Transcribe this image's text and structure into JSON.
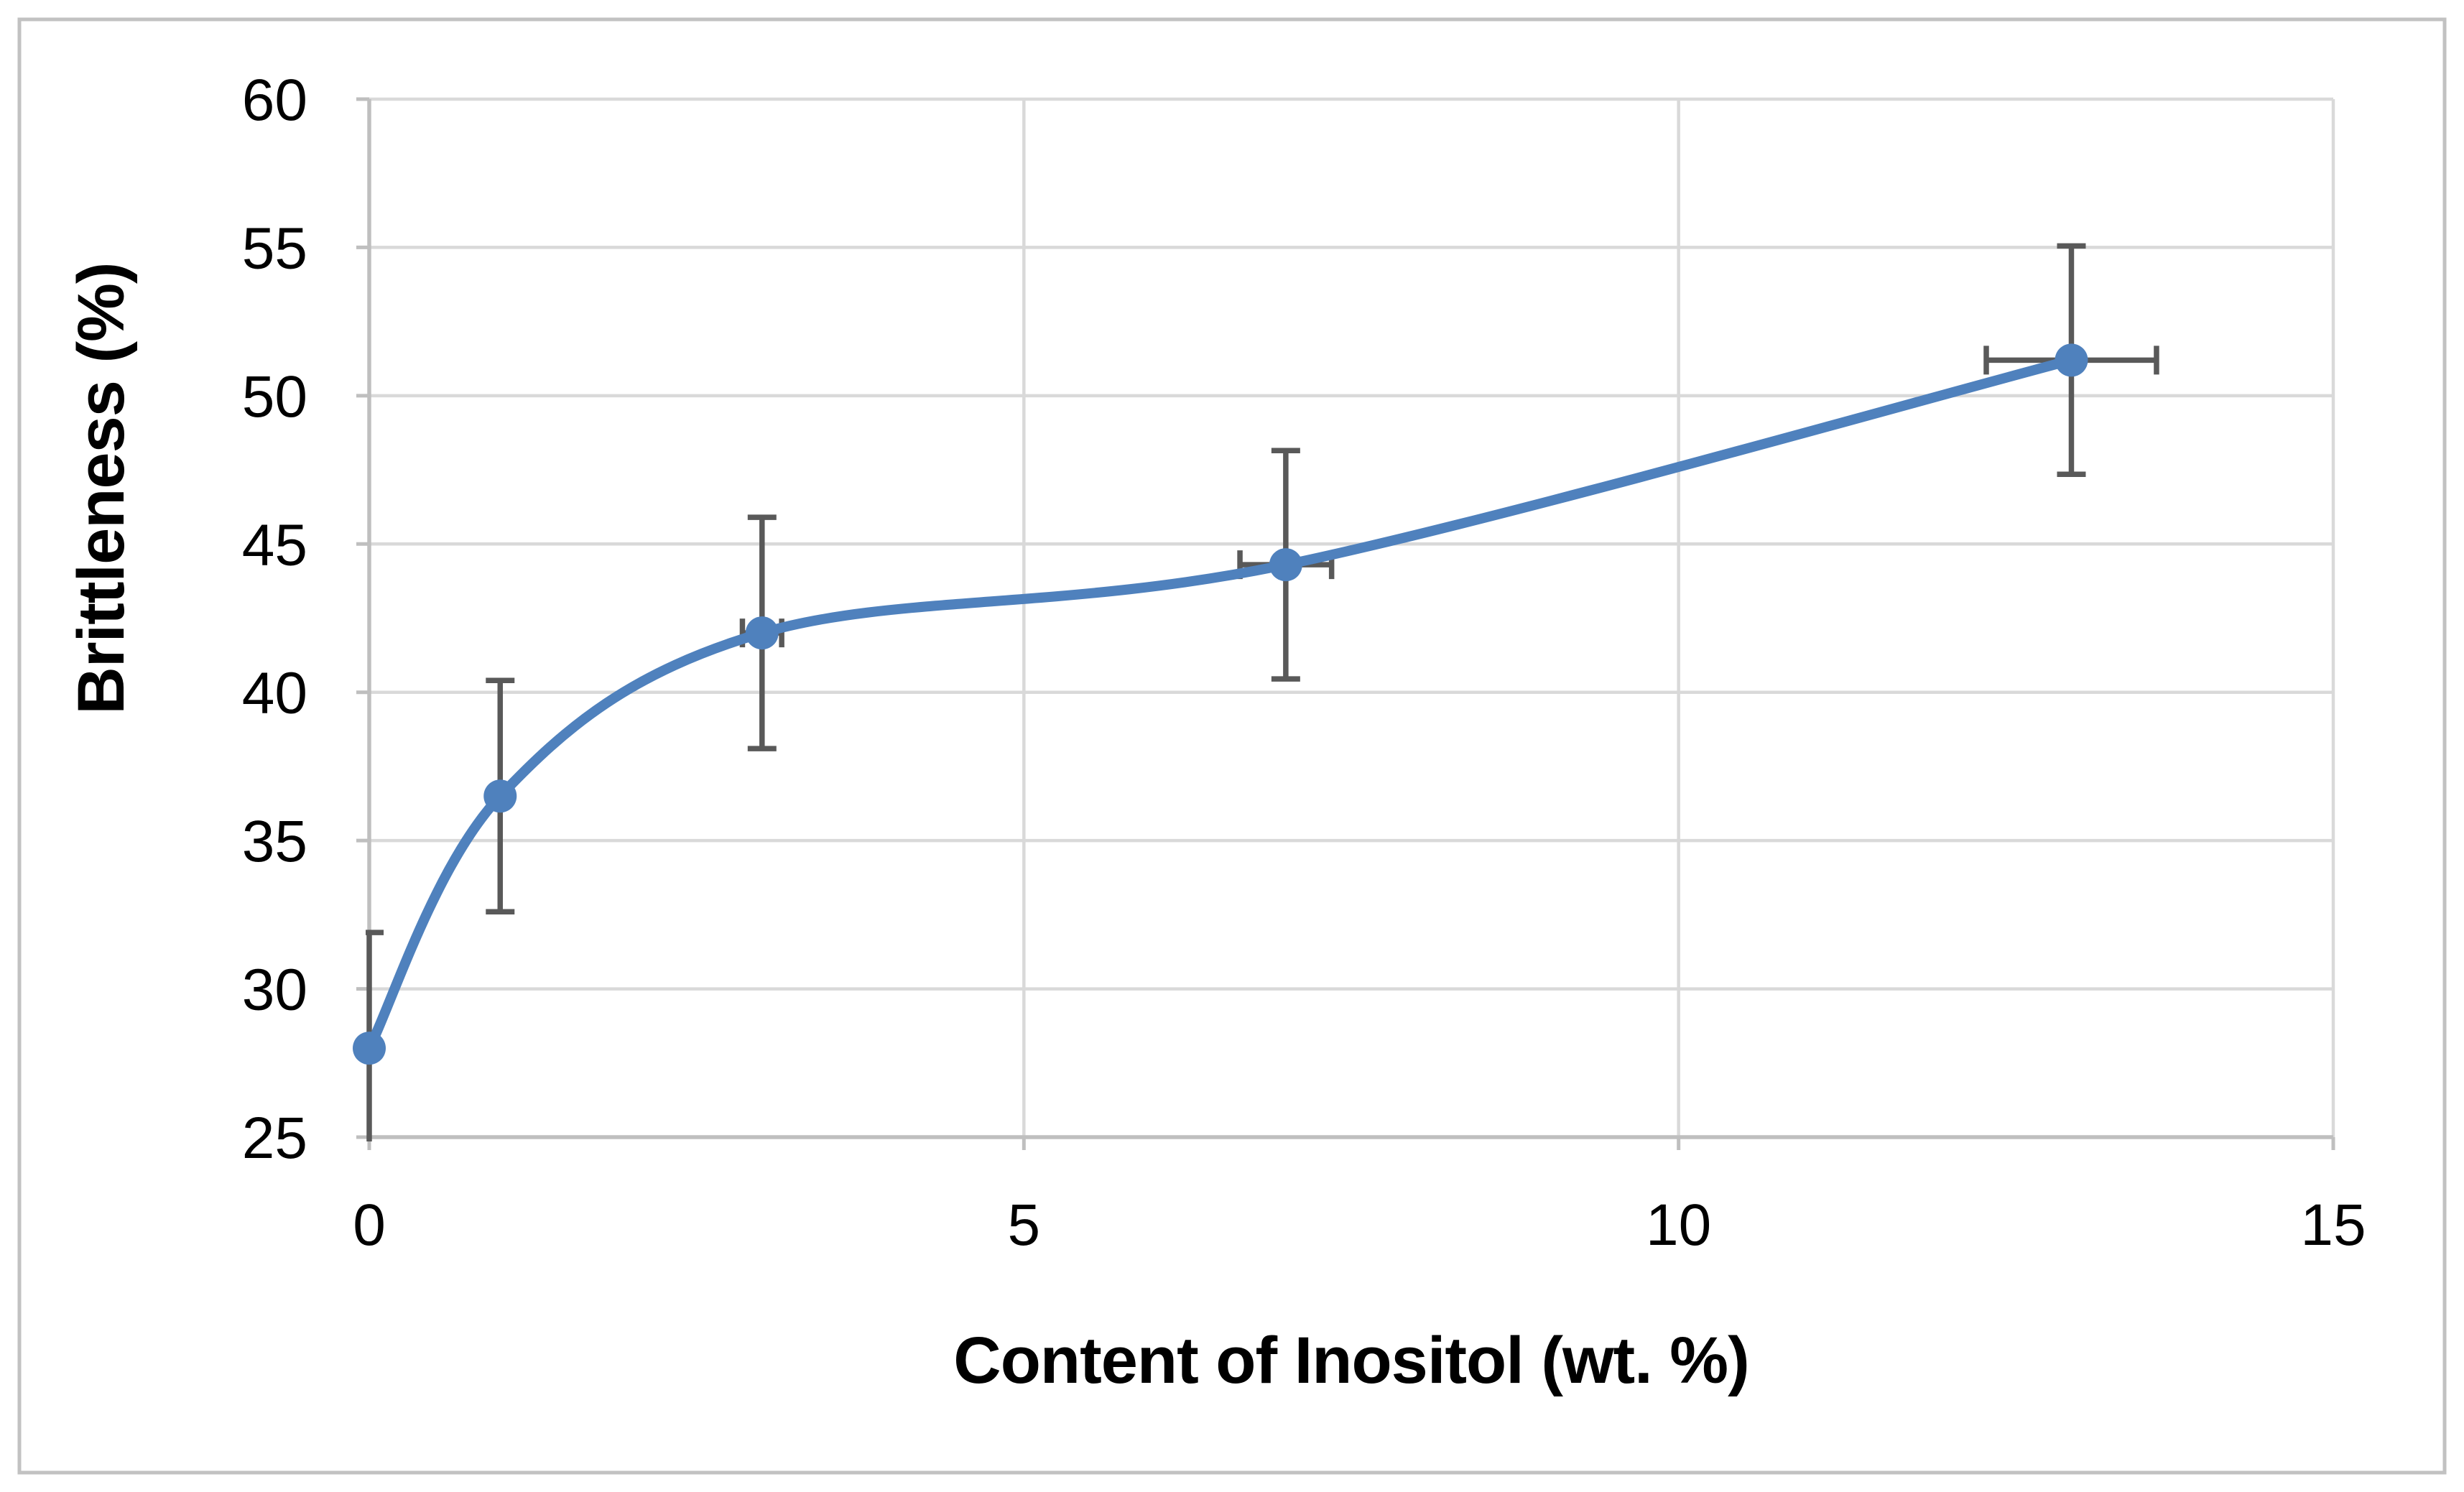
{
  "figure": {
    "background": "#ffffff",
    "border_color": "#c2c2c2"
  },
  "chart_data": {
    "type": "line",
    "subtype": "smoothed-line-with-markers-and-error-bars",
    "title": "",
    "xlabel": "Content of Inositol (wt. %)",
    "ylabel": "Brittleness (%)",
    "xlim": [
      0,
      15
    ],
    "ylim": [
      25,
      60
    ],
    "x_tick_values": [
      0,
      5,
      10,
      15
    ],
    "x_tick_labels": [
      "0",
      "5",
      "10",
      "15"
    ],
    "y_tick_values": [
      25,
      30,
      35,
      40,
      45,
      50,
      55,
      60
    ],
    "y_tick_labels": [
      "25",
      "30",
      "35",
      "40",
      "45",
      "50",
      "55",
      "60"
    ],
    "grid": true,
    "legend": false,
    "axis_color": "#BFBFBF",
    "gridline_color": "#D9D9D9",
    "text_color": "#000000",
    "series": [
      {
        "name": "Brittleness",
        "line_color": "#4F81BD",
        "marker_color": "#4F81BD",
        "marker": "circle",
        "smooth": true,
        "error_bar_color": "#595959",
        "x": [
          0,
          1,
          3,
          7,
          13
        ],
        "y": [
          28.0,
          36.5,
          42.0,
          44.3,
          51.2
        ],
        "y_err": [
          3.9,
          3.9,
          3.9,
          3.85,
          3.85
        ],
        "x_err": [
          0,
          0,
          0.15,
          0.35,
          0.65
        ]
      }
    ]
  }
}
